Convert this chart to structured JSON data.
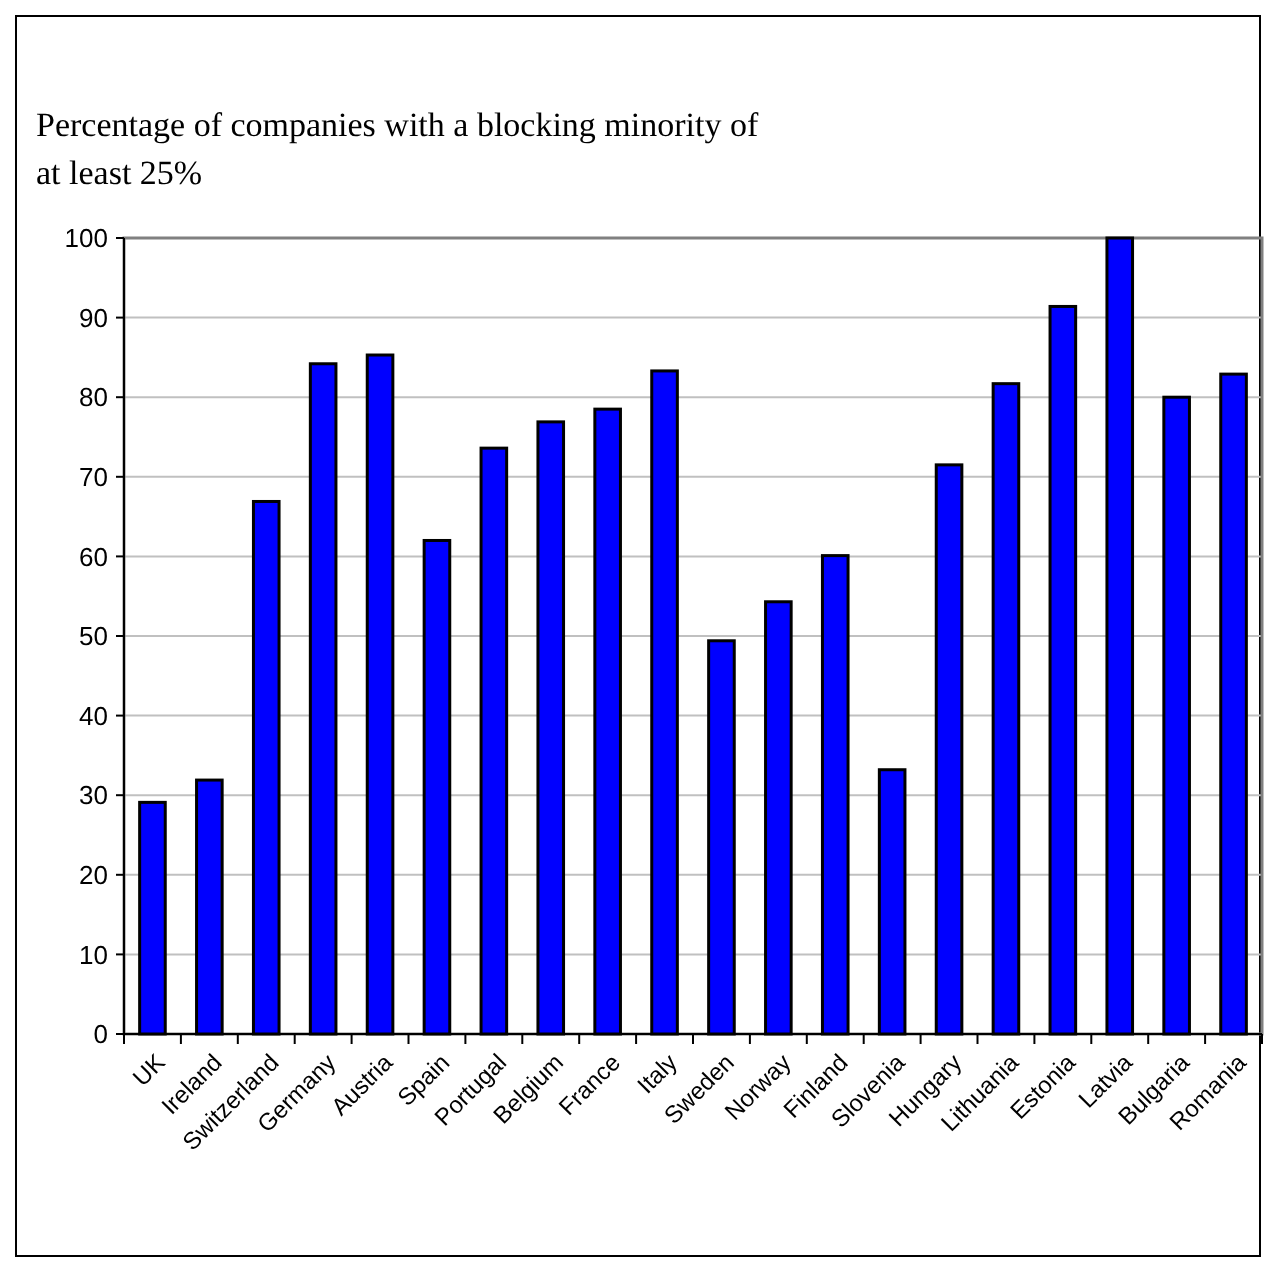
{
  "chart_data": {
    "type": "bar",
    "title": "Percentage of companies with a blocking minority of at least 25%",
    "categories": [
      "UK",
      "Ireland",
      "Switzerland",
      "Germany",
      "Austria",
      "Spain",
      "Portugal",
      "Belgium",
      "France",
      "Italy",
      "Sweden",
      "Norway",
      "Finland",
      "Slovenia",
      "Hungary",
      "Lithuania",
      "Estonia",
      "Latvia",
      "Bulgaria",
      "Romania"
    ],
    "values": [
      29.1,
      31.9,
      66.9,
      84.2,
      85.3,
      62.0,
      73.6,
      76.9,
      78.5,
      83.3,
      49.4,
      54.3,
      60.1,
      33.2,
      71.5,
      81.7,
      91.4,
      100,
      80.0,
      82.9
    ],
    "color": "#0000ff",
    "ylim": [
      0,
      100
    ],
    "yticks": [
      0,
      10,
      20,
      30,
      40,
      50,
      60,
      70,
      80,
      90,
      100
    ],
    "grid": "y"
  }
}
